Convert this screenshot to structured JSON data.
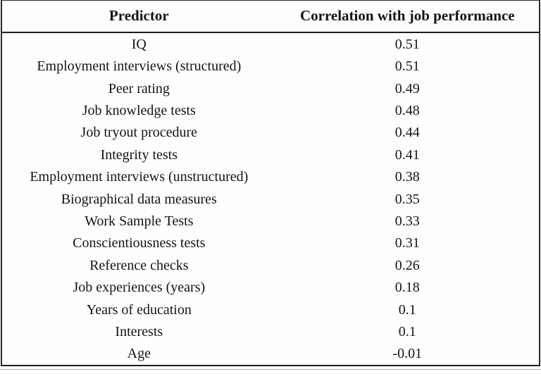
{
  "page": {
    "background": "#ffffff",
    "frame_border_color": "#1c1c1c",
    "secondary_rule_color": "#b3b3b3",
    "text_color": "#141414"
  },
  "table": {
    "headers": [
      {
        "label": "Predictor"
      },
      {
        "label": "Correlation with job performance"
      }
    ],
    "rows": [
      {
        "predictor": "IQ",
        "correlation": "0.51"
      },
      {
        "predictor": "Employment interviews (structured)",
        "correlation": "0.51"
      },
      {
        "predictor": "Peer rating",
        "correlation": "0.49"
      },
      {
        "predictor": "Job knowledge tests",
        "correlation": "0.48"
      },
      {
        "predictor": "Job tryout procedure",
        "correlation": "0.44"
      },
      {
        "predictor": "Integrity tests",
        "correlation": "0.41"
      },
      {
        "predictor": "Employment interviews (unstructured)",
        "correlation": "0.38"
      },
      {
        "predictor": "Biographical data measures",
        "correlation": "0.35"
      },
      {
        "predictor": "Work Sample Tests",
        "correlation": "0.33"
      },
      {
        "predictor": "Conscientiousness tests",
        "correlation": "0.31"
      },
      {
        "predictor": "Reference checks",
        "correlation": "0.26"
      },
      {
        "predictor": "Job experiences (years)",
        "correlation": "0.18"
      },
      {
        "predictor": "Years of education",
        "correlation": "0.1"
      },
      {
        "predictor": "Interests",
        "correlation": "0.1"
      },
      {
        "predictor": "Age",
        "correlation": "-0.01"
      }
    ]
  }
}
